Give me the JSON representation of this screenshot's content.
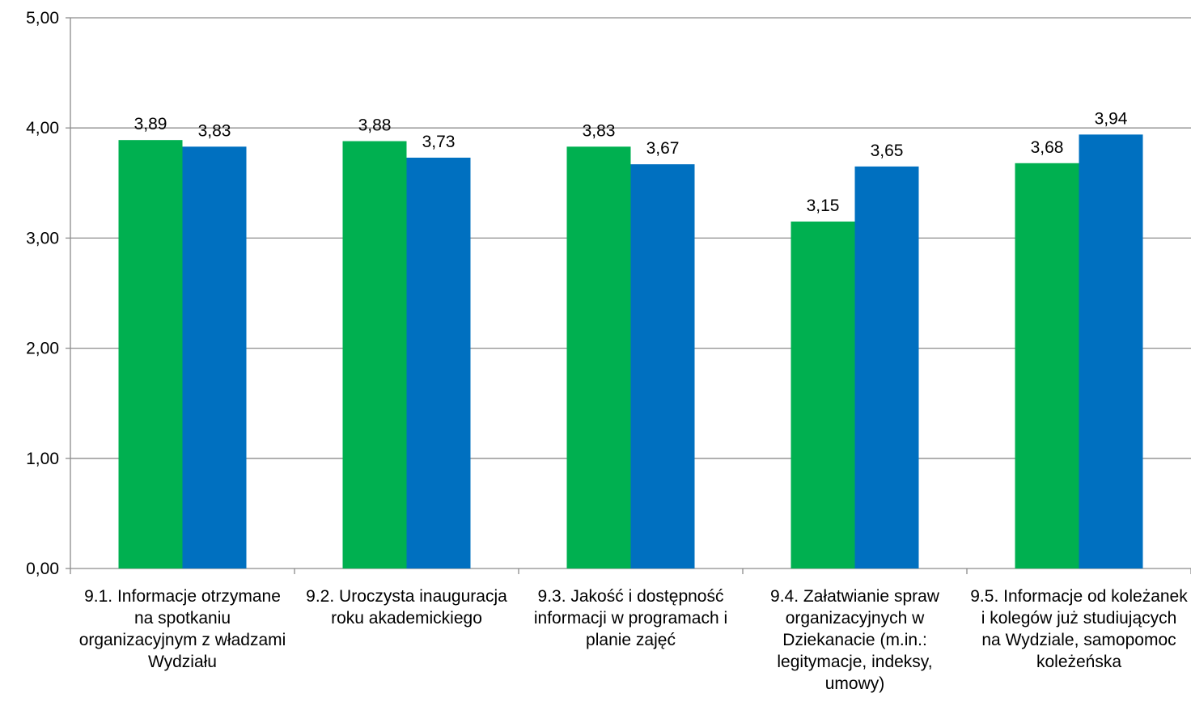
{
  "chart_data": {
    "type": "bar",
    "categories": [
      "9.1. Informacje otrzymane na spotkaniu organizacyjnym z władzami Wydziału",
      "9.2. Uroczysta inauguracja roku akademickiego",
      "9.3. Jakość i dostępność informacji w programach i planie zajęć",
      "9.4. Załatwianie spraw organizacyjnych w Dziekanacie (m.in.: legitymacje, indeksy, umowy)",
      "9.5. Informacje od koleżanek i kolegów już studiujących na Wydziale, samopomoc koleżeńska"
    ],
    "series": [
      {
        "color": "#00b050",
        "values": [
          3.89,
          3.88,
          3.83,
          3.15,
          3.68
        ],
        "labels": [
          "3,89",
          "3,88",
          "3,83",
          "3,15",
          "3,68"
        ]
      },
      {
        "color": "#0070c0",
        "values": [
          3.83,
          3.73,
          3.67,
          3.65,
          3.94
        ],
        "labels": [
          "3,83",
          "3,73",
          "3,67",
          "3,65",
          "3,94"
        ]
      }
    ],
    "yticks": [
      "0,00",
      "1,00",
      "2,00",
      "3,00",
      "4,00",
      "5,00"
    ],
    "ylim": [
      0,
      5
    ],
    "grid": true,
    "legend": "none"
  }
}
